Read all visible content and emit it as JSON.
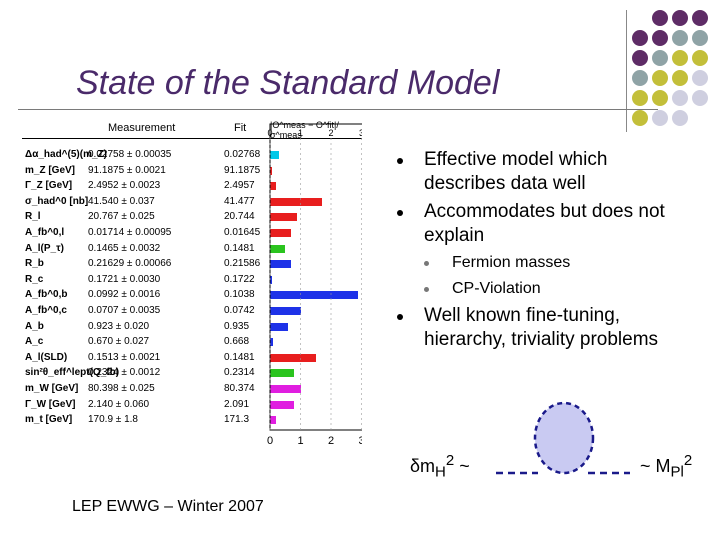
{
  "slide": {
    "title": "State of the Standard Model",
    "footer": "LEP EWWG – Winter 2007"
  },
  "table": {
    "headers": {
      "measurement": "Measurement",
      "fit": "Fit",
      "pull": "|O^meas − O^fit|/σ^meas"
    },
    "axis_ticks": [
      "0",
      "1",
      "2",
      "3"
    ],
    "rows": [
      {
        "name": "Δα_had^(5)(m_Z)",
        "measurement": "0.02758 ± 0.00035",
        "fit": "0.02768",
        "pull": 0.3,
        "color": "#00c8e8"
      },
      {
        "name": "m_Z [GeV]",
        "measurement": "91.1875 ± 0.0021",
        "fit": "91.1875",
        "pull": 0.0,
        "color": "#e81e1e"
      },
      {
        "name": "Γ_Z [GeV]",
        "measurement": "2.4952 ± 0.0023",
        "fit": "2.4957",
        "pull": 0.2,
        "color": "#e81e1e"
      },
      {
        "name": "σ_had^0 [nb]",
        "measurement": "41.540 ± 0.037",
        "fit": "41.477",
        "pull": 1.7,
        "color": "#e81e1e"
      },
      {
        "name": "R_l",
        "measurement": "20.767 ± 0.025",
        "fit": "20.744",
        "pull": 0.9,
        "color": "#e81e1e"
      },
      {
        "name": "A_fb^0,l",
        "measurement": "0.01714 ± 0.00095",
        "fit": "0.01645",
        "pull": 0.7,
        "color": "#e81e1e"
      },
      {
        "name": "A_l(P_τ)",
        "measurement": "0.1465 ± 0.0032",
        "fit": "0.1481",
        "pull": 0.5,
        "color": "#2ac41e"
      },
      {
        "name": "R_b",
        "measurement": "0.21629 ± 0.00066",
        "fit": "0.21586",
        "pull": 0.7,
        "color": "#1e32e8"
      },
      {
        "name": "R_c",
        "measurement": "0.1721 ± 0.0030",
        "fit": "0.1722",
        "pull": 0.0,
        "color": "#1e32e8"
      },
      {
        "name": "A_fb^0,b",
        "measurement": "0.0992 ± 0.0016",
        "fit": "0.1038",
        "pull": 2.9,
        "color": "#1e32e8"
      },
      {
        "name": "A_fb^0,c",
        "measurement": "0.0707 ± 0.0035",
        "fit": "0.0742",
        "pull": 1.0,
        "color": "#1e32e8"
      },
      {
        "name": "A_b",
        "measurement": "0.923 ± 0.020",
        "fit": "0.935",
        "pull": 0.6,
        "color": "#1e32e8"
      },
      {
        "name": "A_c",
        "measurement": "0.670 ± 0.027",
        "fit": "0.668",
        "pull": 0.1,
        "color": "#1e32e8"
      },
      {
        "name": "A_l(SLD)",
        "measurement": "0.1513 ± 0.0021",
        "fit": "0.1481",
        "pull": 1.5,
        "color": "#e81e1e"
      },
      {
        "name": "sin²θ_eff^lept(Q_fb)",
        "measurement": "0.2324 ± 0.0012",
        "fit": "0.2314",
        "pull": 0.8,
        "color": "#2ac41e"
      },
      {
        "name": "m_W [GeV]",
        "measurement": "80.398 ± 0.025",
        "fit": "80.374",
        "pull": 1.0,
        "color": "#e01ee0"
      },
      {
        "name": "Γ_W [GeV]",
        "measurement": "2.140 ± 0.060",
        "fit": "2.091",
        "pull": 0.8,
        "color": "#e01ee0"
      },
      {
        "name": "m_t [GeV]",
        "measurement": "170.9 ± 1.8",
        "fit": "171.3",
        "pull": 0.2,
        "color": "#e01ee0"
      }
    ]
  },
  "bullets": {
    "b1": "Effective model which describes data well",
    "b2": "Accommodates but does not explain",
    "b2a": "Fermion masses",
    "b2b": "CP-Violation",
    "b3": "Well known fine-tuning, hierarchy, triviality problems"
  },
  "formula": {
    "left_sym": "δm",
    "left_sub": "H",
    "left_sup": "2",
    "left_tilde": "~",
    "right_tilde": "~",
    "right_sym": "M",
    "right_sub": "Pl",
    "right_sup": "2"
  },
  "colors": {
    "title": "#4a2a6a",
    "dot_purple": "#5e2c66",
    "dot_teal": "#8fa3a6",
    "dot_olive": "#c3bf3a",
    "dot_lilac": "#cfcfe0",
    "loop_fill": "#c9caf2",
    "loop_stroke": "#1a1a8a"
  }
}
